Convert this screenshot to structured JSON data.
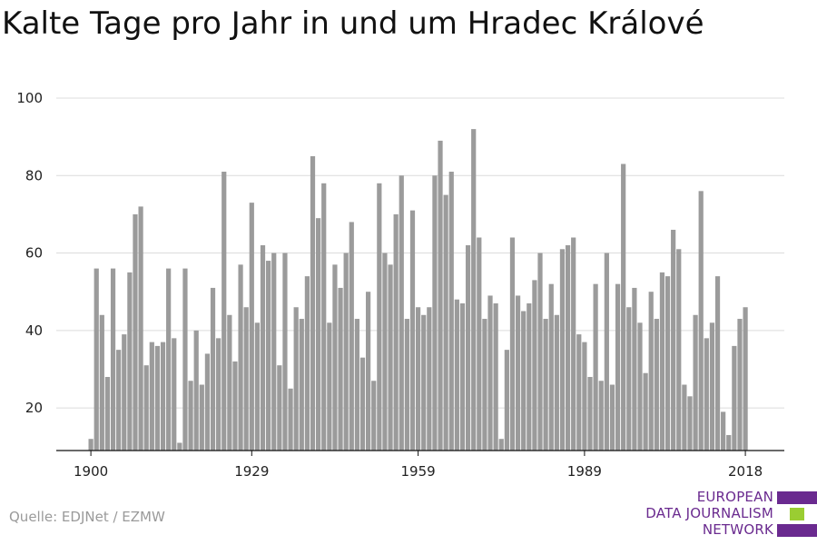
{
  "chart_data": {
    "type": "bar",
    "title": "Kalte Tage pro Jahr in und um Hradec Králové",
    "x_ticks": [
      "1900",
      "1929",
      "1959",
      "1989",
      "2018"
    ],
    "y_ticks": [
      "20",
      "40",
      "60",
      "80",
      "100"
    ],
    "ylim": [
      9,
      100
    ],
    "grid": true,
    "bar_color": "#9b9b9b",
    "years": [
      1900,
      1901,
      1902,
      1903,
      1904,
      1905,
      1906,
      1907,
      1908,
      1909,
      1910,
      1911,
      1912,
      1913,
      1914,
      1915,
      1916,
      1917,
      1918,
      1919,
      1920,
      1921,
      1922,
      1923,
      1924,
      1925,
      1926,
      1927,
      1928,
      1929,
      1930,
      1931,
      1932,
      1933,
      1934,
      1935,
      1936,
      1937,
      1938,
      1939,
      1940,
      1941,
      1942,
      1943,
      1944,
      1945,
      1946,
      1947,
      1948,
      1949,
      1950,
      1951,
      1952,
      1953,
      1954,
      1955,
      1956,
      1957,
      1958,
      1959,
      1960,
      1961,
      1962,
      1963,
      1964,
      1965,
      1966,
      1967,
      1968,
      1969,
      1970,
      1971,
      1972,
      1973,
      1974,
      1975,
      1976,
      1977,
      1978,
      1979,
      1980,
      1981,
      1982,
      1983,
      1984,
      1985,
      1986,
      1987,
      1988,
      1989,
      1990,
      1991,
      1992,
      1993,
      1994,
      1995,
      1996,
      1997,
      1998,
      1999,
      2000,
      2001,
      2002,
      2003,
      2004,
      2005,
      2006,
      2007,
      2008,
      2009,
      2010,
      2011,
      2012,
      2013,
      2014,
      2015,
      2016,
      2017,
      2018,
      2019
    ],
    "values": [
      12,
      56,
      44,
      28,
      56,
      35,
      39,
      55,
      70,
      72,
      31,
      37,
      36,
      37,
      56,
      38,
      11,
      56,
      27,
      40,
      26,
      34,
      51,
      38,
      81,
      44,
      32,
      57,
      46,
      73,
      42,
      62,
      58,
      60,
      31,
      60,
      25,
      46,
      43,
      54,
      85,
      69,
      78,
      42,
      57,
      51,
      60,
      68,
      43,
      33,
      50,
      27,
      78,
      60,
      57,
      70,
      80,
      43,
      71,
      46,
      44,
      46,
      80,
      89,
      75,
      81,
      48,
      47,
      62,
      92,
      64,
      43,
      49,
      47,
      12,
      35,
      64,
      49,
      45,
      47,
      53,
      60,
      43,
      52,
      44,
      61,
      62,
      64,
      39,
      37,
      28,
      52,
      27,
      60,
      26,
      52,
      83,
      46,
      51,
      42,
      29,
      50,
      43,
      55,
      54,
      66,
      61,
      26,
      23,
      44,
      76,
      38,
      42,
      54,
      19,
      13,
      36,
      43,
      46,
      0
    ]
  },
  "source": "Quelle: EDJNet / EZMW",
  "brand": {
    "lines": [
      "EUROPEAN",
      "DATA JOURNALISM",
      "NETWORK"
    ],
    "purple": "#6a2a8f",
    "green": "#9acd32"
  }
}
